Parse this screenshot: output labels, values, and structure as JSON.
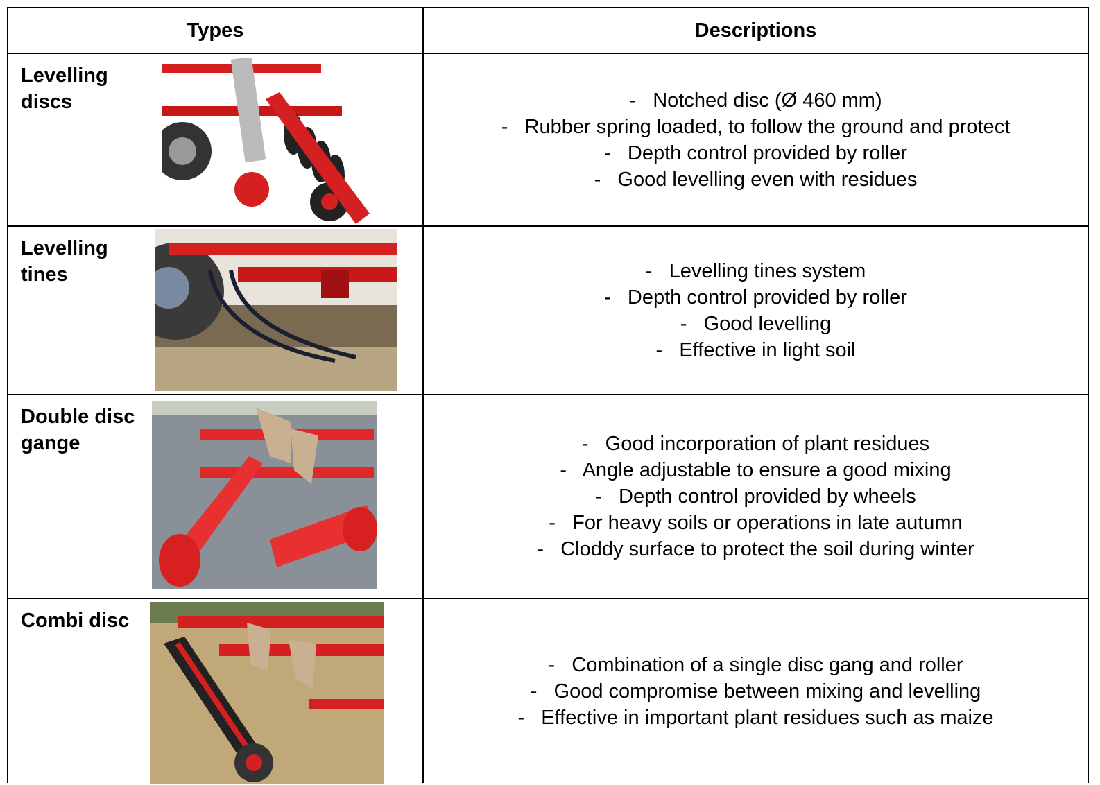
{
  "table": {
    "header": [
      "Types",
      "Descriptions"
    ],
    "rows": [
      {
        "type": "Levelling discs",
        "description": [
          "-   Notched disc (Ø 460 mm)",
          "-   Rubber spring loaded, to follow the ground and protect",
          "-   Depth control provided by roller",
          "-   Good levelling even with residues"
        ]
      },
      {
        "type": "Levelling tines",
        "description": [
          "-   Levelling tines system",
          "-   Depth control provided by roller",
          "-   Good levelling",
          "-   Effective in light soil"
        ]
      },
      {
        "type": "Double disc gange",
        "description": [
          "-   Good incorporation of plant residues",
          "-   Angle adjustable to ensure a good mixing",
          "-   Depth control provided by wheels",
          "-   For heavy soils or operations in late autumn",
          "-   Cloddy surface to protect the soil during winter"
        ]
      },
      {
        "type": "Combi disc",
        "description": [
          "-   Combination of a single disc gang and roller",
          "-   Good compromise between mixing and levelling",
          "-   Effective in important plant residues such as maize"
        ]
      }
    ]
  }
}
